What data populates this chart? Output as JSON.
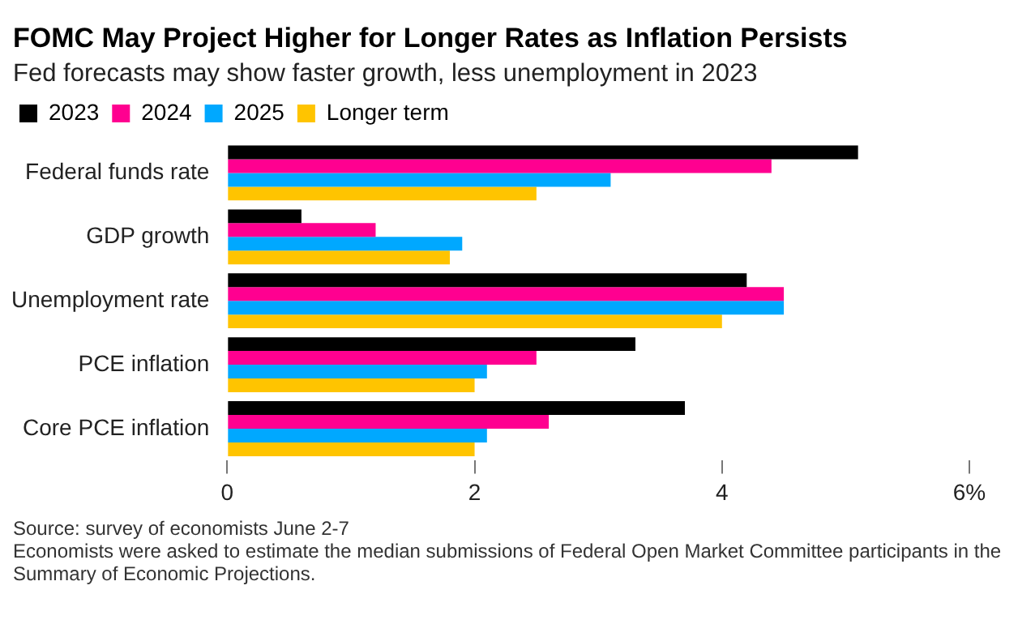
{
  "chart_data": {
    "type": "bar",
    "orientation": "horizontal",
    "title": "FOMC May Project Higher for Longer Rates as Inflation Persists",
    "subtitle": "Fed forecasts may show faster growth, less unemployment in 2023",
    "categories": [
      "Federal funds rate",
      "GDP growth",
      "Unemployment rate",
      "PCE inflation",
      "Core PCE inflation"
    ],
    "series": [
      {
        "name": "2023",
        "color": "#000000",
        "values": [
          5.1,
          0.6,
          4.2,
          3.3,
          3.7
        ]
      },
      {
        "name": "2024",
        "color": "#ff0090",
        "values": [
          4.4,
          1.2,
          4.5,
          2.5,
          2.6
        ]
      },
      {
        "name": "2025",
        "color": "#00a8ff",
        "values": [
          3.1,
          1.9,
          4.5,
          2.1,
          2.1
        ]
      },
      {
        "name": "Longer term",
        "color": "#ffc400",
        "values": [
          2.5,
          1.8,
          4.0,
          2.0,
          2.0
        ]
      }
    ],
    "xlim": [
      0,
      6
    ],
    "xticks": [
      0,
      2,
      4,
      {
        "value": 6,
        "label": "6%"
      }
    ],
    "grid": false,
    "legend": "top left",
    "annotations": [
      "Source: survey of economists June 2-7",
      "Economists were asked to estimate the median submissions of Federal Open Market Committee participants in the Summary of Economic Projections."
    ]
  }
}
